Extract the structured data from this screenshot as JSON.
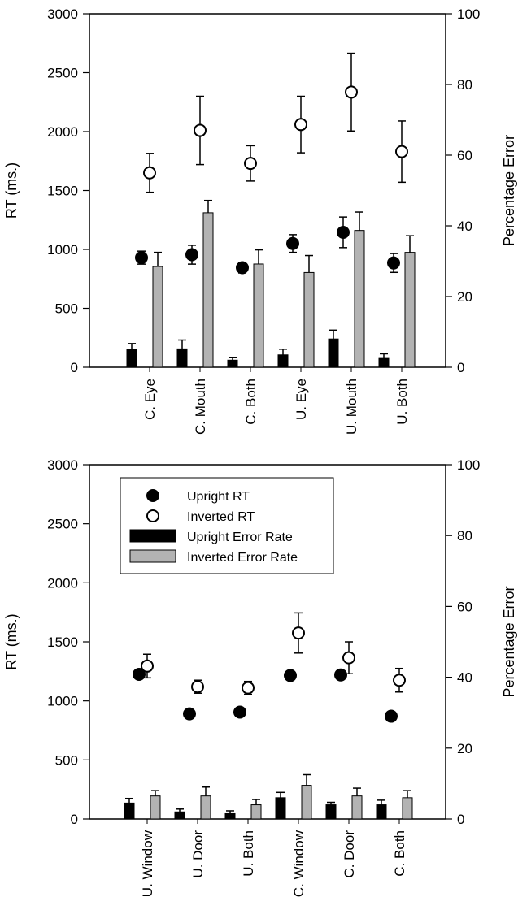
{
  "chart_data": [
    {
      "type": "bar",
      "title": "",
      "ylabel": "RT (ms.)",
      "y2label": "Percentage Error",
      "ylim": [
        0,
        3000
      ],
      "y2lim": [
        0,
        100
      ],
      "yticks": [
        "0",
        "500",
        "1000",
        "1500",
        "2000",
        "2500",
        "3000"
      ],
      "y2ticks": [
        "0",
        "20",
        "40",
        "60",
        "80",
        "100"
      ],
      "categories": [
        "C. Eye",
        "C. Mouth",
        "C. Both",
        "U. Eye",
        "U. Mouth",
        "U. Both"
      ],
      "series": [
        {
          "axis": "right",
          "kind": "bar",
          "color": "#000000",
          "values": [
            5,
            5.2,
            2,
            3.5,
            8,
            2.5
          ],
          "errors": [
            1.7,
            2.5,
            0.7,
            1.6,
            2.5,
            1.3
          ]
        },
        {
          "axis": "right",
          "kind": "bar",
          "color": "#b3b3b3",
          "values": [
            28.5,
            43.7,
            29.2,
            26.8,
            38.7,
            32.5
          ],
          "errors": [
            4,
            3.5,
            4,
            4.8,
            5.2,
            4.7
          ]
        },
        {
          "axis": "left",
          "kind": "point",
          "marker": "filled",
          "values": [
            930,
            955,
            845,
            1050,
            1145,
            885
          ],
          "errors": [
            55,
            80,
            45,
            75,
            130,
            80
          ]
        },
        {
          "axis": "left",
          "kind": "point",
          "marker": "open",
          "values": [
            1650,
            2010,
            1730,
            2060,
            2335,
            1830
          ],
          "errors": [
            165,
            290,
            150,
            240,
            330,
            260
          ]
        }
      ]
    },
    {
      "type": "bar",
      "title": "",
      "ylabel": "RT (ms.)",
      "y2label": "Percentage Error",
      "ylim": [
        0,
        3000
      ],
      "y2lim": [
        0,
        100
      ],
      "yticks": [
        "0",
        "500",
        "1000",
        "1500",
        "2000",
        "2500",
        "3000"
      ],
      "y2ticks": [
        "0",
        "20",
        "40",
        "60",
        "80",
        "100"
      ],
      "categories": [
        "U. Window",
        "U. Door",
        "U. Both",
        "C. Window",
        "C. Door",
        "C. Both"
      ],
      "legend": {
        "placement": "top-left",
        "entries": [
          {
            "label": "Upright RT",
            "marker": "filled"
          },
          {
            "label": "Inverted RT",
            "marker": "open"
          },
          {
            "label": "Upright Error Rate",
            "marker": "bar-black"
          },
          {
            "label": "Inverted Error Rate",
            "marker": "bar-gray"
          }
        ]
      },
      "series": [
        {
          "name": "Upright Error Rate",
          "axis": "right",
          "kind": "bar",
          "color": "#000000",
          "values": [
            4.5,
            2,
            1.5,
            6,
            4,
            4
          ],
          "errors": [
            1.3,
            0.8,
            0.8,
            1.5,
            0.7,
            1.3
          ]
        },
        {
          "name": "Inverted Error Rate",
          "axis": "right",
          "kind": "bar",
          "color": "#b3b3b3",
          "values": [
            6.5,
            6.5,
            4,
            9.5,
            6.5,
            6
          ],
          "errors": [
            1.5,
            2.5,
            1.5,
            3,
            2.2,
            2
          ]
        },
        {
          "name": "Upright RT",
          "axis": "left",
          "kind": "point",
          "marker": "filled",
          "values": [
            1225,
            890,
            905,
            1215,
            1220,
            870
          ],
          "errors": [
            0,
            0,
            0,
            0,
            0,
            0
          ]
        },
        {
          "name": "Inverted RT",
          "axis": "left",
          "kind": "point",
          "marker": "open",
          "values": [
            1295,
            1120,
            1110,
            1575,
            1365,
            1175
          ],
          "errors": [
            100,
            55,
            55,
            170,
            135,
            100
          ]
        }
      ]
    }
  ]
}
